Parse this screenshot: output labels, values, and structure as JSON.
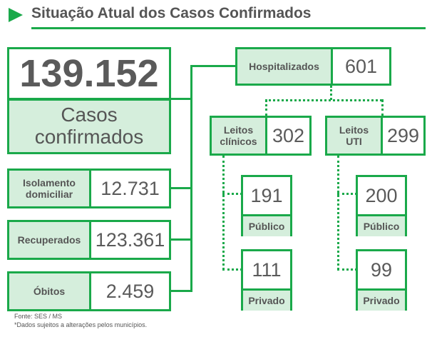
{
  "header": {
    "title": "Situação Atual dos Casos Confirmados"
  },
  "confirmed": {
    "value": "139.152",
    "label_line1": "Casos",
    "label_line2": "confirmados"
  },
  "isolation": {
    "label_line1": "Isolamento",
    "label_line2": "domiciliar",
    "value": "12.731"
  },
  "recovered": {
    "label": "Recuperados",
    "value": "123.361"
  },
  "deaths": {
    "label": "Óbitos",
    "value": "2.459"
  },
  "hospitalized": {
    "label": "Hospitalizados",
    "value": "601"
  },
  "clinical_beds": {
    "label_line1": "Leitos",
    "label_line2": "clínicos",
    "value": "302",
    "public": {
      "value": "191",
      "label": "Público"
    },
    "private": {
      "value": "111",
      "label": "Privado"
    }
  },
  "icu_beds": {
    "label_line1": "Leitos",
    "label_line2": "UTI",
    "value": "299",
    "public": {
      "value": "200",
      "label": "Público"
    },
    "private": {
      "value": "99",
      "label": "Privado"
    }
  },
  "footer": {
    "source": "Fonte: SES / MS",
    "note": "*Dados sujeitos a alterações pelos municípios."
  },
  "colors": {
    "accent": "#1aa94a",
    "label_bg": "#d5eedc",
    "text": "#555555"
  }
}
